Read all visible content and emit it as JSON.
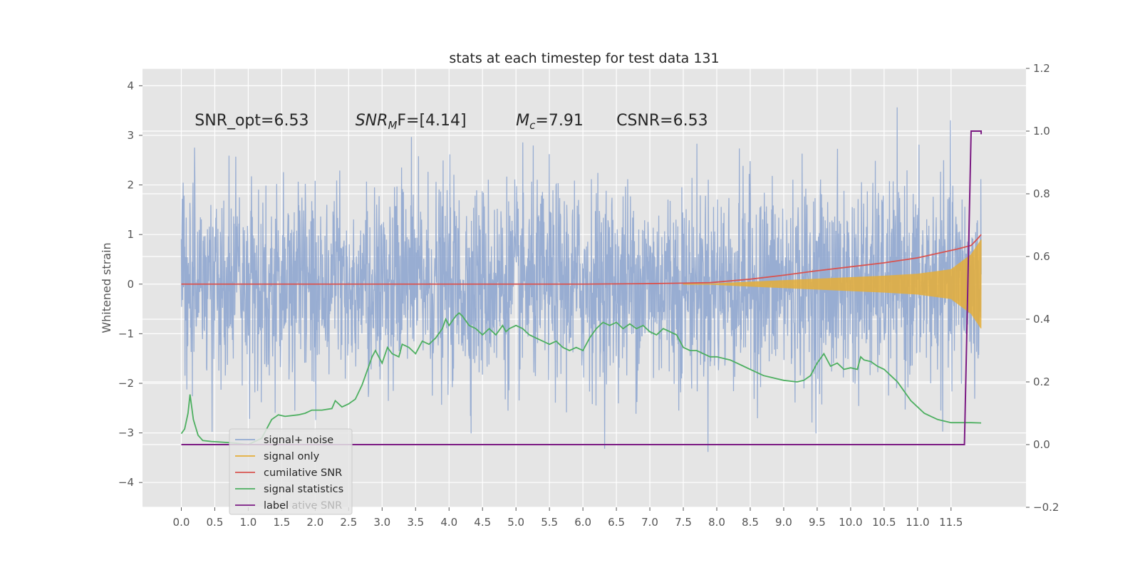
{
  "chart_data": {
    "type": "line",
    "title": "stats at each timestep for test data 131",
    "ylabel": "Whitened strain",
    "xlim": [
      -0.58,
      12.62
    ],
    "ylim": [
      -4.5,
      4.35
    ],
    "y2lim": [
      -0.2,
      1.2
    ],
    "x_ticks": [
      0.0,
      0.5,
      1.0,
      1.5,
      2.0,
      2.5,
      3.0,
      3.5,
      4.0,
      4.5,
      5.0,
      5.5,
      6.0,
      6.5,
      7.0,
      7.5,
      8.0,
      8.5,
      9.0,
      9.5,
      10.0,
      10.5,
      11.0,
      11.5
    ],
    "x_tick_labels": [
      "0.0",
      "0.5",
      "1.0",
      "1.5",
      "2.0",
      "2.5",
      "3.0",
      "3.5",
      "4.0",
      "4.5",
      "5.0",
      "5.5",
      "6.0",
      "6.5",
      "7.0",
      "7.5",
      "8.0",
      "8.5",
      "9.0",
      "9.5",
      "10.0",
      "10.5",
      "11.0",
      "11.5"
    ],
    "y_ticks": [
      -4,
      -3,
      -2,
      -1,
      0,
      1,
      2,
      3,
      4
    ],
    "y_tick_labels": [
      "−4",
      "−3",
      "−2",
      "−1",
      "0",
      "1",
      "2",
      "3",
      "4"
    ],
    "y2_ticks": [
      -0.2,
      0.0,
      0.2,
      0.4,
      0.6,
      0.8,
      1.0,
      1.2
    ],
    "y2_tick_labels": [
      "−0.2",
      "0.0",
      "0.2",
      "0.4",
      "0.6",
      "0.8",
      "1.0",
      "1.2"
    ],
    "grid": true,
    "legend_position": "lower-left",
    "annotations": [
      {
        "text": "SNR_opt=6.53",
        "x": 0.2,
        "y": 3.2
      },
      {
        "text": "F=[4.14]",
        "italic_prefix": "SNR",
        "subscript": "M",
        "x": 2.6,
        "y": 3.2
      },
      {
        "text": "=7.91",
        "italic_prefix": "M",
        "subscript": "c",
        "x": 5.0,
        "y": 3.2
      },
      {
        "text": "CSNR=6.53",
        "x": 6.5,
        "y": 3.2
      }
    ],
    "series": [
      {
        "name": "signal+ noise",
        "axis": "left",
        "color": "#91a8d0",
        "kind": "noise-band",
        "x_range": [
          0.0,
          11.95
        ],
        "amplitude_sigma": 1.0,
        "peak_range": [
          -4.1,
          3.9
        ]
      },
      {
        "name": "signal only",
        "axis": "left",
        "color": "#e5ae38",
        "kind": "chirp",
        "x_range": [
          0.0,
          11.95
        ],
        "envelope": {
          "x": [
            0,
            7.9,
            8.5,
            9.0,
            9.5,
            10.0,
            10.5,
            11.0,
            11.5,
            11.8,
            11.95
          ],
          "y": [
            0,
            0.01,
            0.05,
            0.08,
            0.11,
            0.14,
            0.17,
            0.21,
            0.3,
            0.6,
            0.9
          ]
        }
      },
      {
        "name": "cumilative SNR",
        "axis": "left",
        "color": "#d9534f",
        "x": [
          0,
          1,
          2,
          3,
          4,
          5,
          6,
          7,
          7.5,
          7.9,
          8.5,
          9.0,
          9.5,
          10.0,
          10.5,
          11.0,
          11.3,
          11.6,
          11.8,
          11.9,
          11.95
        ],
        "y": [
          0,
          0,
          0,
          0,
          0,
          0,
          0.0,
          0.01,
          0.02,
          0.03,
          0.1,
          0.18,
          0.27,
          0.35,
          0.43,
          0.53,
          0.62,
          0.71,
          0.78,
          0.92,
          1.0
        ]
      },
      {
        "name": "signal statistics",
        "axis": "right",
        "color": "#4daf60",
        "x": [
          0.0,
          0.05,
          0.1,
          0.13,
          0.18,
          0.25,
          0.32,
          0.45,
          0.6,
          0.8,
          1.0,
          1.2,
          1.35,
          1.45,
          1.55,
          1.75,
          1.85,
          1.95,
          2.1,
          2.25,
          2.3,
          2.4,
          2.5,
          2.6,
          2.7,
          2.8,
          2.85,
          2.9,
          3.0,
          3.08,
          3.15,
          3.25,
          3.3,
          3.4,
          3.5,
          3.6,
          3.7,
          3.8,
          3.9,
          3.95,
          4.0,
          4.1,
          4.15,
          4.2,
          4.3,
          4.4,
          4.5,
          4.6,
          4.7,
          4.8,
          4.85,
          4.9,
          5.0,
          5.1,
          5.2,
          5.3,
          5.4,
          5.5,
          5.6,
          5.7,
          5.75,
          5.8,
          5.9,
          6.0,
          6.1,
          6.2,
          6.3,
          6.4,
          6.5,
          6.6,
          6.7,
          6.8,
          6.9,
          7.0,
          7.1,
          7.2,
          7.3,
          7.4,
          7.5,
          7.6,
          7.7,
          7.8,
          7.9,
          8.0,
          8.2,
          8.3,
          8.4,
          8.5,
          8.6,
          8.7,
          8.8,
          8.9,
          9.0,
          9.2,
          9.3,
          9.4,
          9.5,
          9.6,
          9.7,
          9.8,
          9.9,
          10.0,
          10.1,
          10.15,
          10.2,
          10.3,
          10.4,
          10.5,
          10.6,
          10.7,
          10.8,
          10.9,
          11.0,
          11.1,
          11.2,
          11.3,
          11.4,
          11.5,
          11.6,
          11.7,
          11.8,
          11.95
        ],
        "y": [
          0.035,
          0.05,
          0.1,
          0.16,
          0.08,
          0.03,
          0.013,
          0.01,
          0.008,
          0.005,
          0.0,
          0.02,
          0.08,
          0.095,
          0.09,
          0.095,
          0.1,
          0.11,
          0.11,
          0.115,
          0.14,
          0.12,
          0.13,
          0.145,
          0.19,
          0.25,
          0.28,
          0.3,
          0.26,
          0.31,
          0.29,
          0.28,
          0.32,
          0.31,
          0.29,
          0.33,
          0.32,
          0.34,
          0.37,
          0.4,
          0.38,
          0.41,
          0.42,
          0.41,
          0.38,
          0.37,
          0.35,
          0.37,
          0.35,
          0.38,
          0.36,
          0.37,
          0.38,
          0.37,
          0.35,
          0.34,
          0.33,
          0.32,
          0.33,
          0.31,
          0.305,
          0.3,
          0.31,
          0.3,
          0.34,
          0.37,
          0.39,
          0.38,
          0.39,
          0.37,
          0.385,
          0.37,
          0.38,
          0.36,
          0.35,
          0.37,
          0.36,
          0.35,
          0.31,
          0.3,
          0.3,
          0.29,
          0.28,
          0.28,
          0.27,
          0.26,
          0.25,
          0.24,
          0.23,
          0.22,
          0.215,
          0.21,
          0.205,
          0.2,
          0.205,
          0.22,
          0.26,
          0.29,
          0.25,
          0.26,
          0.24,
          0.245,
          0.24,
          0.28,
          0.27,
          0.265,
          0.25,
          0.24,
          0.22,
          0.2,
          0.17,
          0.14,
          0.12,
          0.1,
          0.09,
          0.08,
          0.075,
          0.07,
          0.07,
          0.07,
          0.07,
          0.069
        ]
      },
      {
        "name": "label",
        "axis": "right",
        "color": "#7b1a83",
        "x": [
          0.0,
          11.7,
          11.8,
          11.95,
          11.95
        ],
        "y": [
          0.0,
          0.0,
          1.0,
          1.0,
          0.99
        ]
      }
    ],
    "legend_ghost_text": "cumilative SNR"
  }
}
